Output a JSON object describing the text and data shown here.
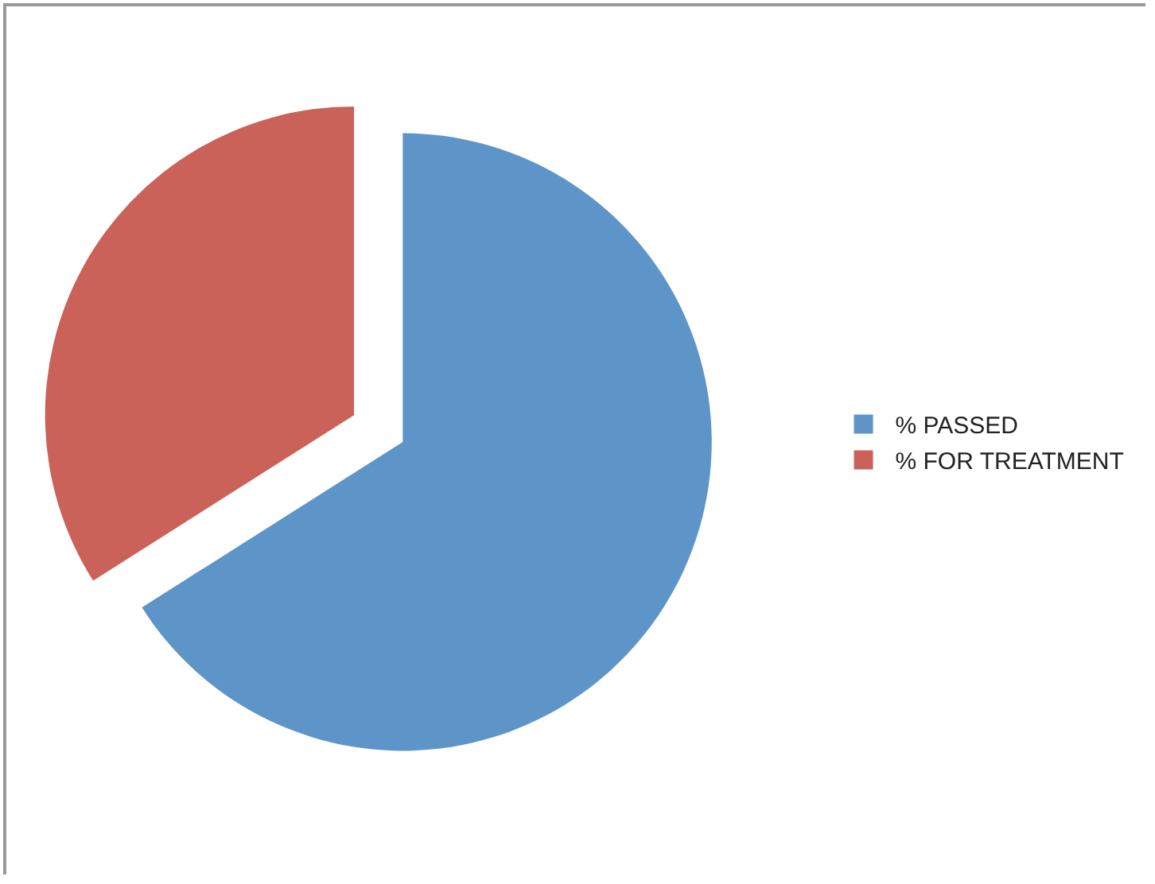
{
  "chart_data": {
    "type": "pie",
    "categories": [
      "% PASSED",
      "% FOR TREATMENT"
    ],
    "values": [
      66,
      34
    ],
    "colors": [
      "#5e95c9",
      "#cb6259"
    ],
    "legend": "right"
  }
}
